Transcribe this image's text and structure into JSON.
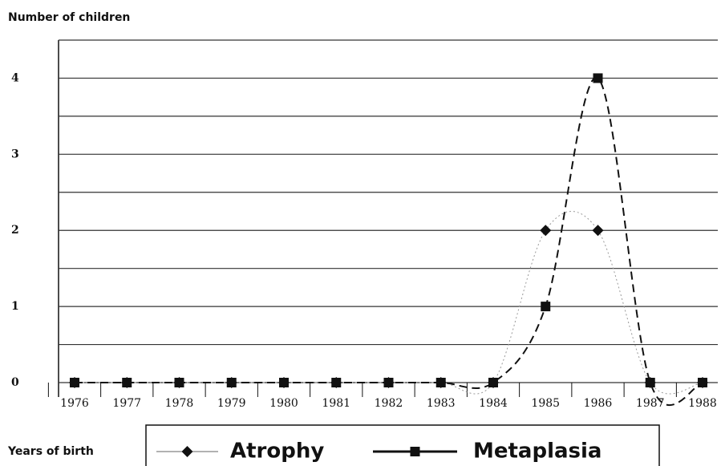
{
  "chart_data": {
    "type": "line",
    "y_label": "Number of children",
    "x_label": "Years of birth",
    "categories": [
      "1976",
      "1977",
      "1978",
      "1979",
      "1980",
      "1981",
      "1982",
      "1983",
      "1984",
      "1985",
      "1986",
      "1987",
      "1988"
    ],
    "series": [
      {
        "name": "Atrophy",
        "color": "#999999",
        "marker": "diamond",
        "values": [
          0,
          0,
          0,
          0,
          0,
          0,
          0,
          0,
          0,
          2,
          2,
          0,
          0
        ]
      },
      {
        "name": "Metaplasia",
        "color": "#111111",
        "marker": "square",
        "values": [
          0,
          0,
          0,
          0,
          0,
          0,
          0,
          0,
          0,
          1,
          4,
          0,
          0
        ]
      }
    ],
    "ylim": [
      0,
      4.5
    ],
    "yticks": [
      0,
      1,
      2,
      3,
      4
    ],
    "minor_yticks": [
      0.5,
      1.5,
      2.5,
      3.5
    ],
    "grid": true,
    "smooth": true
  }
}
